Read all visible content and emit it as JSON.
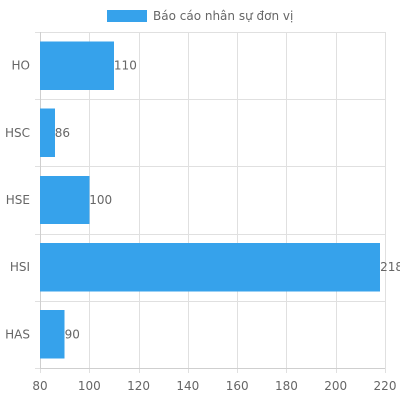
{
  "chart_data": {
    "type": "bar",
    "orientation": "horizontal",
    "categories": [
      "HO",
      "HSC",
      "HSE",
      "HSI",
      "HAS"
    ],
    "series": [
      {
        "name": "Báo cáo nhân sự đơn vị",
        "values": [
          110,
          86,
          100,
          218,
          90
        ],
        "color": "#36a2eb"
      }
    ],
    "xlim": [
      80,
      220
    ],
    "xticks": [
      80,
      100,
      120,
      140,
      160,
      180,
      200,
      220
    ],
    "grid": true,
    "legend_position": "top",
    "data_labels": true
  }
}
